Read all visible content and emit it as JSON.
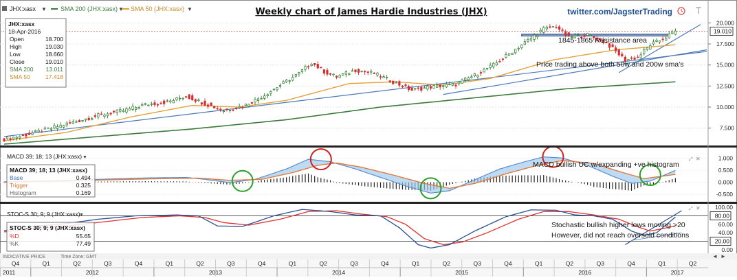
{
  "header": {
    "symbol": "JHX:xasx",
    "sma200_label": "SMA 200 (JHX:xasx)",
    "sma50_label": "SMA 50 (JHX:xasx)",
    "title": "Weekly chart of James Hardie Industries (JHX)",
    "twitter": "twitter.com/JagsterTrading"
  },
  "info_box": {
    "symbol": "JHX:xasx",
    "date": "18-Apr-2016",
    "rows": [
      {
        "label": "Open",
        "value": "18.700"
      },
      {
        "label": "High",
        "value": "19.030"
      },
      {
        "label": "Low",
        "value": "18.660"
      },
      {
        "label": "Close",
        "value": "19.010"
      },
      {
        "label": "SMA 200",
        "value": "13.011"
      },
      {
        "label": "SMA 50",
        "value": "17.418"
      }
    ]
  },
  "macd_box": {
    "title": "MACD 39; 18; 13 (JHX:xasx)",
    "rows": [
      {
        "label": "Base",
        "value": "0.494"
      },
      {
        "label": "Trigger",
        "value": "0.325"
      },
      {
        "label": "Histogram",
        "value": "0.169"
      }
    ]
  },
  "stoch_box": {
    "title": "STOC-S 30; 9; 9 (JHX:xasx)",
    "rows": [
      {
        "label": "%D",
        "value": "55.65"
      },
      {
        "label": "%K",
        "value": "77.49"
      }
    ]
  },
  "panel_labels": {
    "macd": "MACD 39; 18; 13 (JHX:xasx)",
    "stoch": "STOC-S 30; 9; 9 (JHX:xasx)"
  },
  "annotations": {
    "resistance": "1845-1865 Resistance area",
    "sma": "Price trading above both 50w and 200w sma's",
    "macd": "MACD bullish UC w/expanding +ve histogram",
    "stoch1": "Stochastic bullish higher lows moving >20",
    "stoch2": "However, did not reach oversold conditions"
  },
  "footer": {
    "indicative": "INDICATIVE PRICE",
    "timezone": "Time Zone: GMT"
  },
  "colors": {
    "up": "#2a7a2a",
    "down": "#d23030",
    "sma200": "#3c7a3c",
    "sma50": "#e2a23a",
    "trendline": "#4a78b8",
    "macd_fill": "#9cc8ec",
    "macd_trigger": "#e07a3a",
    "circle_green": "#2aa02a",
    "circle_red": "#d02020",
    "stoch_k": "#2a4f8f",
    "stoch_d": "#e03030",
    "resistance": "#1f3f7f"
  },
  "chart_data": {
    "type": "candlestick",
    "title": "Weekly chart of James Hardie Industries (JHX)",
    "price_axis": {
      "ticks": [
        "7.500",
        "10.000",
        "12.500",
        "15.000",
        "17.500",
        "20.000"
      ],
      "range": [
        5.6,
        20.6
      ],
      "last_price_label": "19.010"
    },
    "macd_axis": {
      "ticks": [
        "-0.500",
        "0.000",
        "0.500",
        "1.000"
      ],
      "range": [
        -0.75,
        1.35
      ]
    },
    "stoch_axis": {
      "ticks": [
        "0.00",
        "20.00",
        "40.00",
        "60.00",
        "80.00",
        "100.00"
      ],
      "range": [
        -5,
        105
      ],
      "levels": [
        20,
        80
      ]
    },
    "x_axis": {
      "quarters": [
        "Q4",
        "Q1",
        "Q2",
        "Q3",
        "Q4",
        "Q1",
        "Q2",
        "Q3",
        "Q4",
        "Q1",
        "Q2",
        "Q3",
        "Q4",
        "Q1",
        "Q2",
        "Q3",
        "Q4",
        "Q1",
        "Q2",
        "Q3",
        "Q4",
        "Q1",
        "Q2"
      ],
      "years": [
        "2011",
        "2012",
        "2013",
        "2014",
        "2015",
        "2016",
        "2017"
      ]
    },
    "price_anchors": [
      [
        0,
        6.2
      ],
      [
        6,
        6.6
      ],
      [
        12,
        7.2
      ],
      [
        22,
        8.2
      ],
      [
        30,
        9.0
      ],
      [
        38,
        9.6
      ],
      [
        45,
        10.3
      ],
      [
        52,
        10.6
      ],
      [
        58,
        11.3
      ],
      [
        64,
        10.4
      ],
      [
        70,
        9.6
      ],
      [
        76,
        10.1
      ],
      [
        82,
        11.2
      ],
      [
        88,
        12.6
      ],
      [
        94,
        14.0
      ],
      [
        98,
        15.3
      ],
      [
        102,
        14.2
      ],
      [
        106,
        13.6
      ],
      [
        112,
        14.4
      ],
      [
        118,
        14.0
      ],
      [
        124,
        13.0
      ],
      [
        130,
        12.0
      ],
      [
        136,
        12.4
      ],
      [
        144,
        12.7
      ],
      [
        150,
        13.8
      ],
      [
        156,
        15.0
      ],
      [
        162,
        16.6
      ],
      [
        168,
        18.2
      ],
      [
        172,
        19.3
      ],
      [
        176,
        19.6
      ],
      [
        180,
        18.3
      ],
      [
        186,
        18.6
      ],
      [
        192,
        17.6
      ],
      [
        198,
        15.6
      ],
      [
        202,
        15.9
      ],
      [
        206,
        17.4
      ],
      [
        210,
        18.1
      ],
      [
        214,
        19.0
      ]
    ],
    "sma200_anchors": [
      [
        0,
        5.6
      ],
      [
        30,
        6.5
      ],
      [
        60,
        7.4
      ],
      [
        90,
        8.5
      ],
      [
        120,
        10.0
      ],
      [
        150,
        11.1
      ],
      [
        180,
        12.2
      ],
      [
        214,
        13.0
      ]
    ],
    "sma50_anchors": [
      [
        0,
        6.0
      ],
      [
        20,
        7.0
      ],
      [
        40,
        8.8
      ],
      [
        60,
        10.2
      ],
      [
        75,
        10.0
      ],
      [
        90,
        10.8
      ],
      [
        110,
        12.8
      ],
      [
        125,
        13.0
      ],
      [
        140,
        12.6
      ],
      [
        155,
        13.4
      ],
      [
        175,
        15.6
      ],
      [
        195,
        16.8
      ],
      [
        214,
        17.4
      ]
    ],
    "trendlines": [
      {
        "points": [
          [
            0,
            6.5
          ],
          [
            224,
            16.6
          ]
        ]
      },
      {
        "points": [
          [
            140,
            11.5
          ],
          [
            224,
            16.8
          ]
        ]
      },
      {
        "points": [
          [
            196,
            14.1
          ],
          [
            222,
            19.8
          ]
        ]
      }
    ],
    "resistance_zone": [
      18.45,
      18.65
    ],
    "resistance_start_week": 165,
    "macd_base_anchors": [
      [
        0,
        0.02
      ],
      [
        10,
        0.05
      ],
      [
        25,
        0.1
      ],
      [
        45,
        0.18
      ],
      [
        58,
        0.2
      ],
      [
        64,
        0.12
      ],
      [
        72,
        -0.02
      ],
      [
        80,
        0.12
      ],
      [
        90,
        0.55
      ],
      [
        97,
        0.95
      ],
      [
        104,
        0.85
      ],
      [
        112,
        0.55
      ],
      [
        120,
        0.2
      ],
      [
        128,
        -0.15
      ],
      [
        136,
        -0.45
      ],
      [
        142,
        -0.35
      ],
      [
        150,
        0.1
      ],
      [
        158,
        0.55
      ],
      [
        166,
        0.85
      ],
      [
        172,
        1.05
      ],
      [
        178,
        1.0
      ],
      [
        186,
        0.7
      ],
      [
        194,
        0.25
      ],
      [
        200,
        -0.05
      ],
      [
        206,
        0.05
      ],
      [
        214,
        0.49
      ]
    ],
    "macd_trigger_anchors": [
      [
        0,
        0.0
      ],
      [
        12,
        0.03
      ],
      [
        30,
        0.09
      ],
      [
        50,
        0.15
      ],
      [
        62,
        0.17
      ],
      [
        72,
        0.08
      ],
      [
        82,
        0.12
      ],
      [
        92,
        0.4
      ],
      [
        100,
        0.7
      ],
      [
        106,
        0.8
      ],
      [
        114,
        0.62
      ],
      [
        124,
        0.3
      ],
      [
        134,
        -0.05
      ],
      [
        142,
        -0.25
      ],
      [
        150,
        -0.05
      ],
      [
        160,
        0.35
      ],
      [
        170,
        0.7
      ],
      [
        178,
        0.9
      ],
      [
        188,
        0.78
      ],
      [
        196,
        0.45
      ],
      [
        204,
        0.15
      ],
      [
        214,
        0.325
      ]
    ],
    "stoch_k_anchors": [
      [
        0,
        45
      ],
      [
        8,
        55
      ],
      [
        18,
        60
      ],
      [
        30,
        72
      ],
      [
        42,
        80
      ],
      [
        55,
        82
      ],
      [
        62,
        80
      ],
      [
        68,
        56
      ],
      [
        76,
        55
      ],
      [
        86,
        80
      ],
      [
        95,
        95
      ],
      [
        104,
        90
      ],
      [
        112,
        82
      ],
      [
        120,
        80
      ],
      [
        126,
        52
      ],
      [
        132,
        12
      ],
      [
        136,
        4
      ],
      [
        142,
        12
      ],
      [
        150,
        44
      ],
      [
        160,
        78
      ],
      [
        168,
        94
      ],
      [
        176,
        93
      ],
      [
        182,
        82
      ],
      [
        188,
        80
      ],
      [
        194,
        72
      ],
      [
        200,
        44
      ],
      [
        204,
        34
      ],
      [
        208,
        40
      ],
      [
        214,
        77
      ]
    ],
    "stoch_d_anchors": [
      [
        0,
        42
      ],
      [
        10,
        50
      ],
      [
        20,
        56
      ],
      [
        32,
        66
      ],
      [
        44,
        76
      ],
      [
        56,
        80
      ],
      [
        64,
        76
      ],
      [
        70,
        64
      ],
      [
        78,
        58
      ],
      [
        88,
        72
      ],
      [
        97,
        90
      ],
      [
        106,
        92
      ],
      [
        114,
        84
      ],
      [
        122,
        78
      ],
      [
        128,
        60
      ],
      [
        134,
        26
      ],
      [
        140,
        12
      ],
      [
        146,
        18
      ],
      [
        154,
        40
      ],
      [
        164,
        72
      ],
      [
        172,
        90
      ],
      [
        180,
        90
      ],
      [
        188,
        82
      ],
      [
        196,
        72
      ],
      [
        202,
        54
      ],
      [
        206,
        44
      ],
      [
        214,
        56
      ]
    ],
    "circles": [
      {
        "panel": "macd",
        "week": 76,
        "value": 0.05,
        "color": "green"
      },
      {
        "panel": "macd",
        "week": 101,
        "value": 0.95,
        "color": "red"
      },
      {
        "panel": "macd",
        "week": 136,
        "value": -0.25,
        "color": "green"
      },
      {
        "panel": "macd",
        "week": 175,
        "value": 1.05,
        "color": "red"
      },
      {
        "panel": "macd",
        "week": 206,
        "value": 0.3,
        "color": "green"
      }
    ]
  }
}
